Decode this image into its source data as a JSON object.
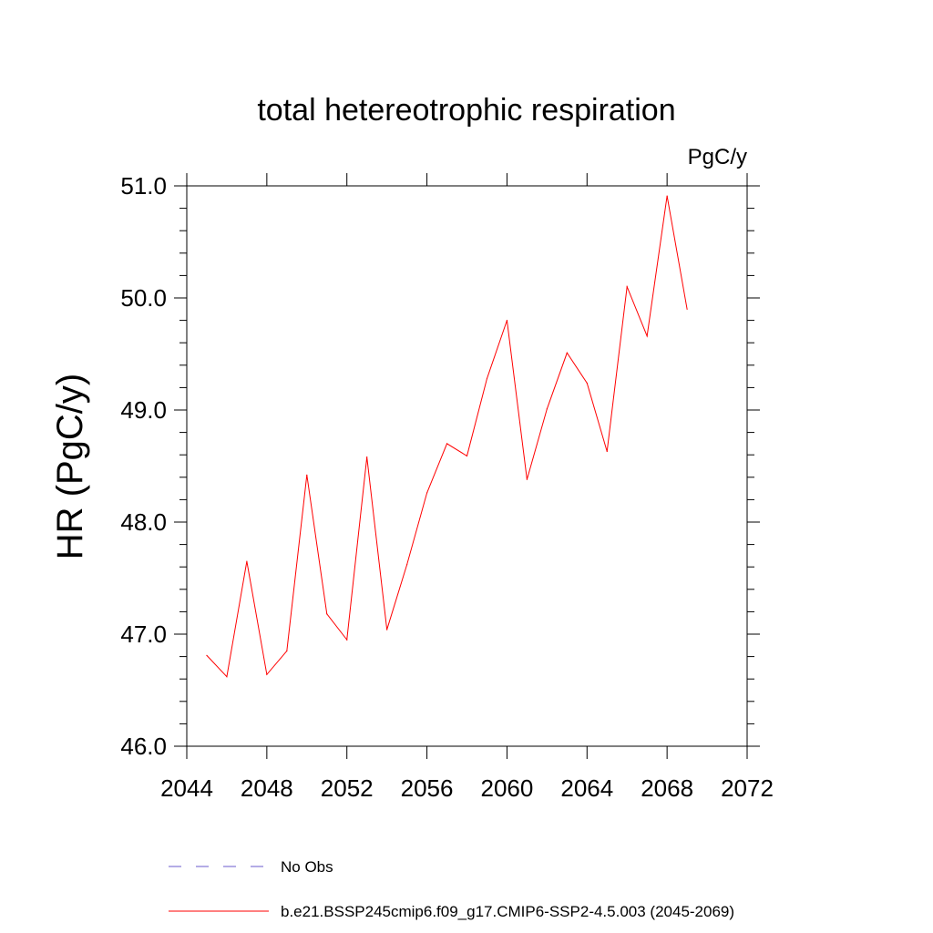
{
  "chart_data": {
    "type": "line",
    "title": "total hetereotrophic respiration",
    "units_label": "PgC/y",
    "ylabel": "HR  (PgC/y)",
    "xlabel": "",
    "xlim": [
      2044,
      2072
    ],
    "ylim": [
      46.0,
      51.0
    ],
    "x_ticks": [
      "2044",
      "2048",
      "2052",
      "2056",
      "2060",
      "2064",
      "2068",
      "2072"
    ],
    "y_ticks": [
      "46.0",
      "47.0",
      "48.0",
      "49.0",
      "50.0",
      "51.0"
    ],
    "grid": false,
    "series": [
      {
        "name": "b.e21.BSSP245cmip6.f09_g17.CMIP6-SSP2-4.5.003 (2045-2069)",
        "color": "#ff0000",
        "style": "solid",
        "x": [
          2045,
          2046,
          2047,
          2048,
          2049,
          2050,
          2051,
          2052,
          2053,
          2054,
          2055,
          2056,
          2057,
          2058,
          2059,
          2060,
          2061,
          2062,
          2063,
          2064,
          2065,
          2066,
          2067,
          2068,
          2069
        ],
        "values": [
          46.81,
          46.62,
          47.65,
          46.64,
          46.85,
          48.42,
          47.18,
          46.95,
          48.58,
          47.04,
          47.62,
          48.26,
          48.7,
          48.59,
          49.28,
          49.8,
          48.38,
          49.01,
          49.51,
          49.24,
          48.63,
          50.1,
          49.66,
          50.91,
          49.9
        ]
      }
    ],
    "legend": {
      "placement": "bottom",
      "entries": [
        {
          "label": "No Obs",
          "color": "#6a5acd",
          "style": "dashed"
        },
        {
          "label": "b.e21.BSSP245cmip6.f09_g17.CMIP6-SSP2-4.5.003 (2045-2069)",
          "color": "#ff0000",
          "style": "solid"
        }
      ]
    }
  }
}
